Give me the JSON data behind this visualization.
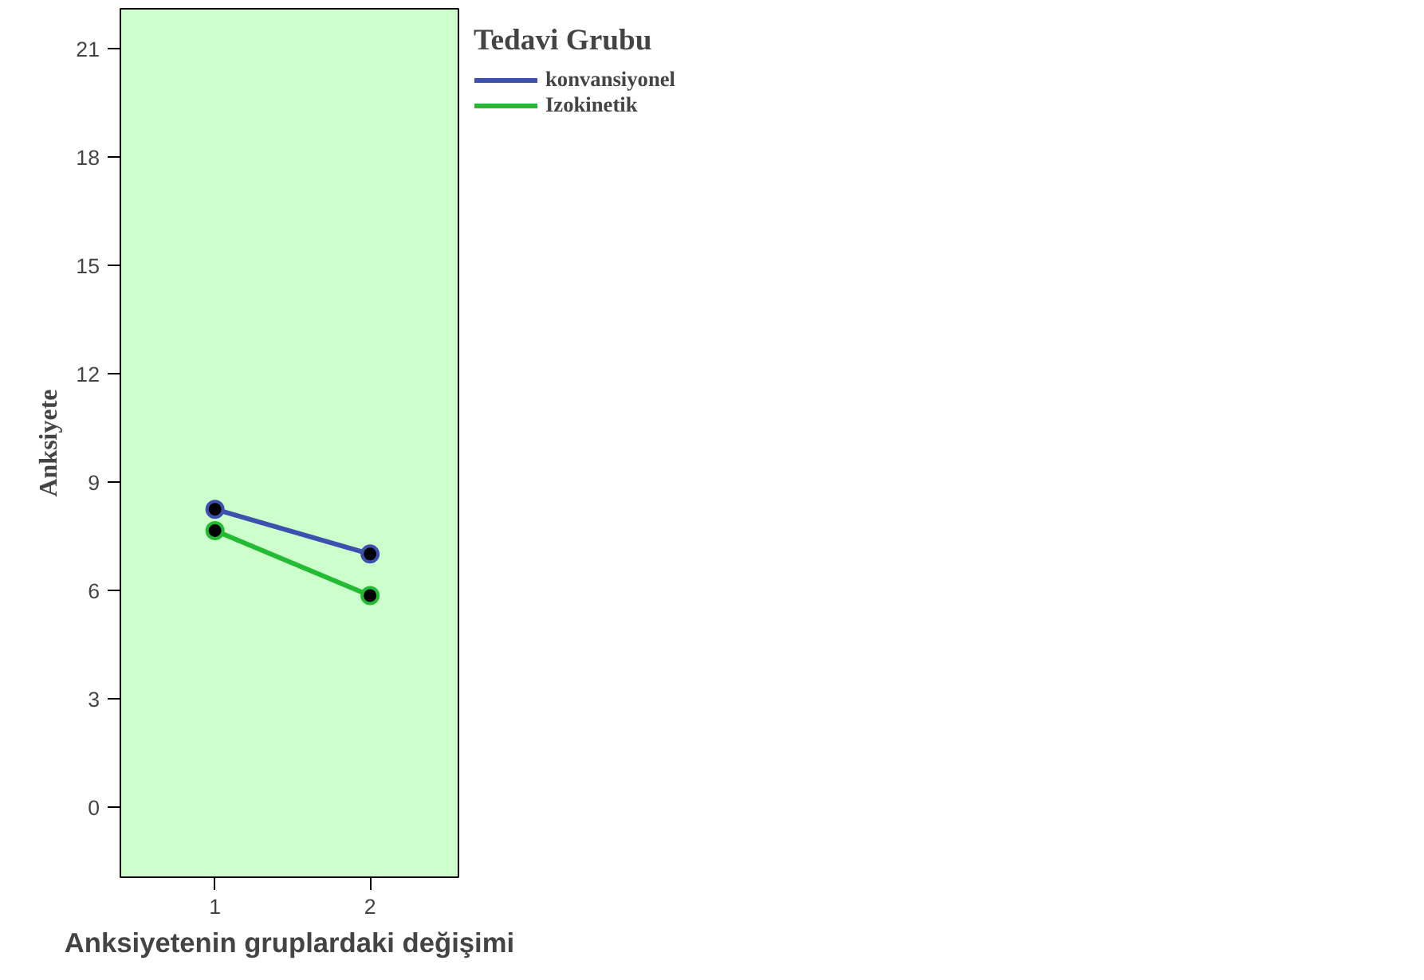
{
  "chart_data": {
    "type": "line",
    "xlabel": "Anksiyetenin gruplardaki değişimi",
    "ylabel": "Anksiyete",
    "legend_title": "Tedavi Grubu",
    "x": [
      1,
      2
    ],
    "series": [
      {
        "name": "konvansiyonel",
        "color": "#3c50b0",
        "values": [
          8.24,
          7.0
        ]
      },
      {
        "name": "Izokinetik",
        "color": "#22bb33",
        "values": [
          7.65,
          5.85
        ]
      }
    ],
    "xlim": [
      0.39,
      2.57
    ],
    "xticks": [
      1,
      2
    ],
    "ylim": [
      -1.95,
      22.1
    ],
    "yticks": [
      0,
      3,
      6,
      9,
      12,
      15,
      18,
      21
    ],
    "grid": false,
    "legend": "top right",
    "marker": "circle",
    "line_style": "solid"
  }
}
